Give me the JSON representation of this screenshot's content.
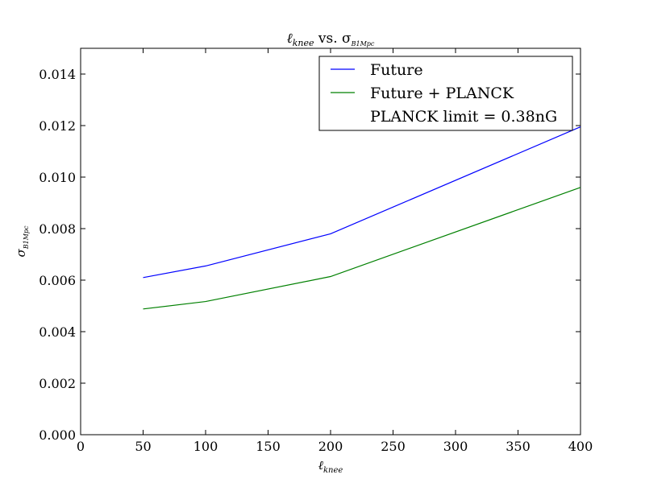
{
  "chart_data": {
    "type": "line",
    "title": "ℓknee vs. σB1Mpc",
    "title_main": "ℓ",
    "title_sub": "knee",
    "title_mid": " vs. σ",
    "title_sub2": "B1Mpc",
    "xlabel": "ℓknee",
    "xlabel_main": "ℓ",
    "xlabel_sub": "knee",
    "ylabel": "σB1Mpc",
    "ylabel_main": "σ",
    "ylabel_sub": "B1Mpc",
    "xlim": [
      0,
      400
    ],
    "ylim": [
      0,
      0.015
    ],
    "xticks": [
      0,
      50,
      100,
      150,
      200,
      250,
      300,
      350,
      400
    ],
    "yticks": [
      0.0,
      0.002,
      0.004,
      0.006,
      0.008,
      0.01,
      0.012,
      0.014
    ],
    "xtick_labels": [
      "0",
      "50",
      "100",
      "150",
      "200",
      "250",
      "300",
      "350",
      "400"
    ],
    "ytick_labels": [
      "0.000",
      "0.002",
      "0.004",
      "0.006",
      "0.008",
      "0.010",
      "0.012",
      "0.014"
    ],
    "grid": false,
    "legend_position": "top-right",
    "x": [
      50,
      100,
      200,
      400
    ],
    "series": [
      {
        "name": "Future",
        "color": "#0000ff",
        "values": [
          0.0061,
          0.00655,
          0.0078,
          0.01195
        ]
      },
      {
        "name": "Future + PLANCK",
        "color": "#008000",
        "values": [
          0.00488,
          0.00517,
          0.00614,
          0.0096
        ]
      }
    ],
    "legend_extra": "PLANCK limit = 0.38nG"
  }
}
